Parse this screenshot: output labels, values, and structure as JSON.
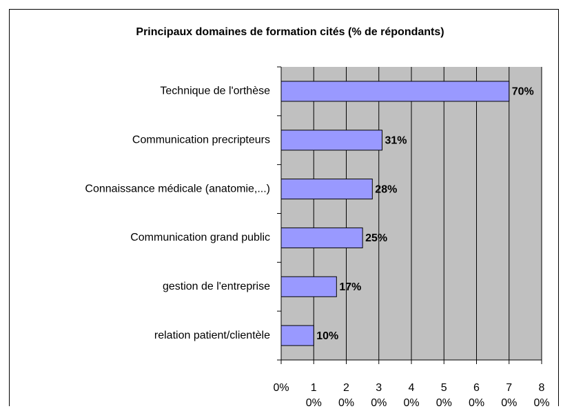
{
  "chart_data": {
    "type": "bar",
    "orientation": "horizontal",
    "title": "Principaux domaines de formation cités (% de répondants)",
    "categories": [
      "Technique de l'orthèse",
      "Communication precripteurs",
      "Connaissance médicale (anatomie,...)",
      "Communication grand public",
      "gestion de l'entreprise",
      "relation patient/clientèle"
    ],
    "values": [
      70,
      31,
      28,
      25,
      17,
      10
    ],
    "value_labels": [
      "70%",
      "31%",
      "28%",
      "25%",
      "17%",
      "10%"
    ],
    "color": "#9999ff",
    "xlim": [
      0,
      80
    ],
    "xticks": [
      {
        "value": 0,
        "label": "0%"
      },
      {
        "value": 10,
        "label": "10%"
      },
      {
        "value": 20,
        "label": "20%"
      },
      {
        "value": 30,
        "label": "30%"
      },
      {
        "value": 40,
        "label": "40%"
      },
      {
        "value": 50,
        "label": "50%"
      },
      {
        "value": 60,
        "label": "60%"
      },
      {
        "value": 70,
        "label": "70%"
      },
      {
        "value": 80,
        "label": "80%"
      }
    ],
    "grid": true
  }
}
